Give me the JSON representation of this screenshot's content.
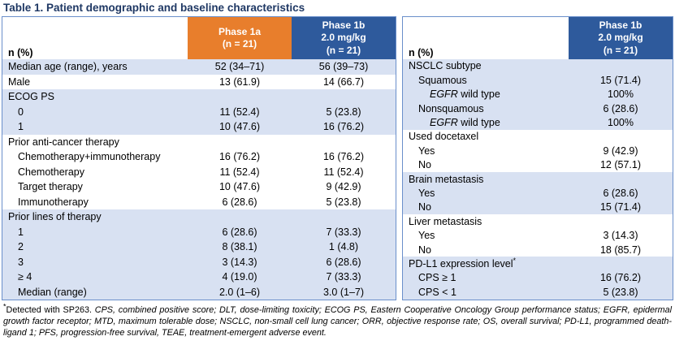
{
  "title": "Table 1. Patient demographic and baseline characteristics",
  "colors": {
    "title": "#1F3864",
    "phase1a_header": "#E87E2C",
    "phase1b_header": "#2E5A9C",
    "row_shade": "#D8E1F2",
    "table_border": "#6A8FCB",
    "header_text": "#FFFFFF",
    "body_text": "#000000"
  },
  "left_table": {
    "corner_label": "n (%)",
    "columns": [
      {
        "lines": [
          "Phase 1a",
          "(n = 21)"
        ],
        "bg": "phase1a"
      },
      {
        "lines": [
          "Phase 1b",
          "2.0 mg/kg",
          "(n = 21)"
        ],
        "bg": "phase1b"
      }
    ],
    "groups": [
      {
        "shade": "blue",
        "rows": [
          {
            "indent": 0,
            "label": [
              {
                "t": "Median age (range), years"
              }
            ],
            "values": [
              "52 (34–71)",
              "56 (39–73)"
            ]
          }
        ]
      },
      {
        "shade": "white",
        "rows": [
          {
            "indent": 0,
            "label": [
              {
                "t": "Male"
              }
            ],
            "values": [
              "13 (61.9)",
              "14 (66.7)"
            ]
          }
        ]
      },
      {
        "shade": "blue",
        "rows": [
          {
            "indent": 0,
            "label": [
              {
                "t": "ECOG PS"
              }
            ],
            "values": [
              "",
              ""
            ]
          },
          {
            "indent": 1,
            "label": [
              {
                "t": "0"
              }
            ],
            "values": [
              "11 (52.4)",
              "5 (23.8)"
            ]
          },
          {
            "indent": 1,
            "label": [
              {
                "t": "1"
              }
            ],
            "values": [
              "10 (47.6)",
              "16 (76.2)"
            ]
          }
        ]
      },
      {
        "shade": "white",
        "rows": [
          {
            "indent": 0,
            "label": [
              {
                "t": "Prior anti-cancer therapy"
              }
            ],
            "values": [
              "",
              ""
            ]
          },
          {
            "indent": 1,
            "label": [
              {
                "t": "Chemotherapy+immunotherapy"
              }
            ],
            "values": [
              "16 (76.2)",
              "16 (76.2)"
            ]
          },
          {
            "indent": 1,
            "label": [
              {
                "t": "Chemotherapy"
              }
            ],
            "values": [
              "11 (52.4)",
              "11 (52.4)"
            ]
          },
          {
            "indent": 1,
            "label": [
              {
                "t": "Target therapy"
              }
            ],
            "values": [
              "10 (47.6)",
              "9 (42.9)"
            ]
          },
          {
            "indent": 1,
            "label": [
              {
                "t": "Immunotherapy"
              }
            ],
            "values": [
              "6 (28.6)",
              "5 (23.8)"
            ]
          }
        ]
      },
      {
        "shade": "blue",
        "rows": [
          {
            "indent": 0,
            "label": [
              {
                "t": "Prior lines of therapy"
              }
            ],
            "values": [
              "",
              ""
            ]
          },
          {
            "indent": 1,
            "label": [
              {
                "t": "1"
              }
            ],
            "values": [
              "6 (28.6)",
              "7 (33.3)"
            ]
          },
          {
            "indent": 1,
            "label": [
              {
                "t": "2"
              }
            ],
            "values": [
              "8 (38.1)",
              "1 (4.8)"
            ]
          },
          {
            "indent": 1,
            "label": [
              {
                "t": "3"
              }
            ],
            "values": [
              "3 (14.3)",
              "6 (28.6)"
            ]
          },
          {
            "indent": 1,
            "label": [
              {
                "t": "≥ 4"
              }
            ],
            "values": [
              "4 (19.0)",
              "7 (33.3)"
            ]
          },
          {
            "indent": 1,
            "label": [
              {
                "t": "Median (range)"
              }
            ],
            "values": [
              "2.0 (1–6)",
              "3.0 (1–7)"
            ]
          }
        ]
      }
    ]
  },
  "right_table": {
    "corner_label": "n (%)",
    "columns": [
      {
        "lines": [
          "Phase 1b",
          "2.0 mg/kg",
          "(n = 21)"
        ],
        "bg": "phase1b"
      }
    ],
    "groups": [
      {
        "shade": "blue",
        "rows": [
          {
            "indent": 0,
            "label": [
              {
                "t": "NSCLC subtype"
              }
            ],
            "values": [
              ""
            ]
          },
          {
            "indent": 1,
            "label": [
              {
                "t": "Squamous"
              }
            ],
            "values": [
              "15 (71.4)"
            ]
          },
          {
            "indent": 2,
            "label": [
              {
                "t": "EGFR",
                "i": true
              },
              {
                "t": " wild type"
              }
            ],
            "values": [
              "100%"
            ]
          },
          {
            "indent": 1,
            "label": [
              {
                "t": "Nonsquamous"
              }
            ],
            "values": [
              "6 (28.6)"
            ]
          },
          {
            "indent": 2,
            "label": [
              {
                "t": "EGFR",
                "i": true
              },
              {
                "t": " wild type"
              }
            ],
            "values": [
              "100%"
            ]
          }
        ]
      },
      {
        "shade": "white",
        "rows": [
          {
            "indent": 0,
            "label": [
              {
                "t": "Used docetaxel"
              }
            ],
            "values": [
              ""
            ]
          },
          {
            "indent": 1,
            "label": [
              {
                "t": "Yes"
              }
            ],
            "values": [
              "9 (42.9)"
            ]
          },
          {
            "indent": 1,
            "label": [
              {
                "t": "No"
              }
            ],
            "values": [
              "12 (57.1)"
            ]
          }
        ]
      },
      {
        "shade": "blue",
        "rows": [
          {
            "indent": 0,
            "label": [
              {
                "t": "Brain metastasis"
              }
            ],
            "values": [
              ""
            ]
          },
          {
            "indent": 1,
            "label": [
              {
                "t": "Yes"
              }
            ],
            "values": [
              "6 (28.6)"
            ]
          },
          {
            "indent": 1,
            "label": [
              {
                "t": "No"
              }
            ],
            "values": [
              "15 (71.4)"
            ]
          }
        ]
      },
      {
        "shade": "white",
        "rows": [
          {
            "indent": 0,
            "label": [
              {
                "t": "Liver metastasis"
              }
            ],
            "values": [
              ""
            ]
          },
          {
            "indent": 1,
            "label": [
              {
                "t": "Yes"
              }
            ],
            "values": [
              "3 (14.3)"
            ]
          },
          {
            "indent": 1,
            "label": [
              {
                "t": "No"
              }
            ],
            "values": [
              "18 (85.7)"
            ]
          }
        ]
      },
      {
        "shade": "blue",
        "rows": [
          {
            "indent": 0,
            "label": [
              {
                "t": "PD-L1 expression level"
              },
              {
                "t": "*",
                "sup": true
              }
            ],
            "values": [
              ""
            ]
          },
          {
            "indent": 1,
            "label": [
              {
                "t": "CPS ≥ 1"
              }
            ],
            "values": [
              "16 (76.2)"
            ]
          },
          {
            "indent": 1,
            "label": [
              {
                "t": "CPS < 1"
              }
            ],
            "values": [
              "5 (23.8)"
            ]
          }
        ]
      }
    ]
  },
  "footnote": {
    "parts": [
      {
        "t": "*",
        "sup": true
      },
      {
        "t": "Detected with SP263. "
      },
      {
        "t": "CPS, combined positive score; DLT, dose-limiting toxicity; ECOG PS, Eastern Cooperative Oncology Group performance status; EGFR, epidermal growth factor receptor; MTD, maximum tolerable dose; NSCLC, non-small cell lung cancer; ORR, objective response rate; OS, overall survival; PD-L1, programmed death-ligand 1; PFS, progression-free survival, TEAE, treatment-emergent adverse event.",
        "i": true
      }
    ]
  }
}
